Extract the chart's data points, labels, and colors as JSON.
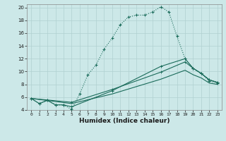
{
  "xlabel": "Humidex (Indice chaleur)",
  "xlim": [
    -0.5,
    23.5
  ],
  "ylim": [
    4,
    20.5
  ],
  "xticks": [
    0,
    1,
    2,
    3,
    4,
    5,
    6,
    7,
    8,
    9,
    10,
    11,
    12,
    13,
    14,
    15,
    16,
    17,
    18,
    19,
    20,
    21,
    22,
    23
  ],
  "yticks": [
    4,
    6,
    8,
    10,
    12,
    14,
    16,
    18,
    20
  ],
  "bg_color": "#cce8e8",
  "grid_color": "#b0d0d0",
  "line_color": "#1a6b5a",
  "line1_x": [
    0,
    1,
    2,
    3,
    4,
    5,
    6,
    7,
    8,
    9,
    10,
    11,
    12,
    13,
    14,
    15,
    16,
    17,
    18,
    19,
    20,
    21,
    22,
    23
  ],
  "line1_y": [
    5.8,
    5.0,
    5.5,
    4.8,
    4.8,
    4.1,
    6.5,
    9.5,
    11.0,
    13.5,
    15.2,
    17.3,
    18.5,
    18.8,
    18.8,
    19.3,
    20.1,
    19.3,
    15.5,
    12.0,
    10.5,
    9.7,
    8.5,
    8.2
  ],
  "line2_x": [
    0,
    1,
    2,
    3,
    4,
    5,
    10,
    16,
    19,
    20,
    21,
    22,
    23
  ],
  "line2_y": [
    5.8,
    5.0,
    5.5,
    4.8,
    4.8,
    4.5,
    7.0,
    10.8,
    12.0,
    10.5,
    9.7,
    8.7,
    8.3
  ],
  "line3_x": [
    0,
    5,
    10,
    16,
    19,
    20,
    21,
    22,
    23
  ],
  "line3_y": [
    5.8,
    5.2,
    7.2,
    9.9,
    11.5,
    10.5,
    9.7,
    8.7,
    8.3
  ],
  "line4_x": [
    0,
    5,
    10,
    16,
    19,
    20,
    21,
    22,
    23
  ],
  "line4_y": [
    5.8,
    5.0,
    6.5,
    8.8,
    10.2,
    9.5,
    9.0,
    8.2,
    8.0
  ]
}
